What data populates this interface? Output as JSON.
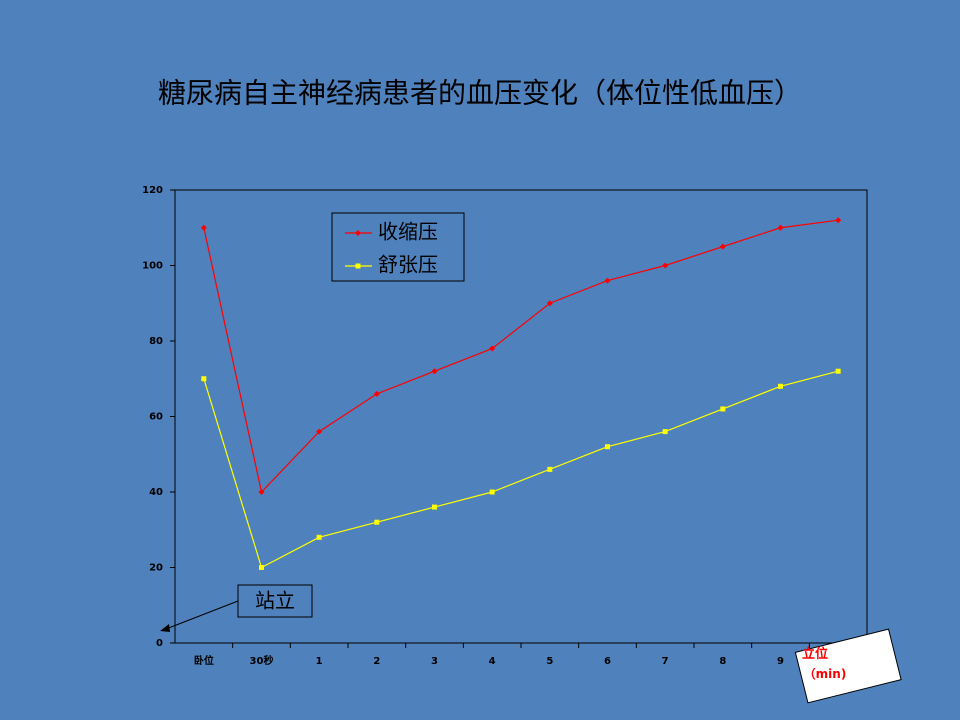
{
  "chart_data": {
    "type": "line",
    "title": "糖尿病自主神经病患者的血压变化（体位性低血压）",
    "categories": [
      "卧位",
      "30秒",
      "1",
      "2",
      "3",
      "4",
      "5",
      "6",
      "7",
      "8",
      "9",
      null
    ],
    "series": [
      {
        "name": "收缩压",
        "color": "#ff0000",
        "marker": "diamond",
        "values": [
          110,
          40,
          56,
          66,
          72,
          78,
          90,
          96,
          100,
          105,
          110,
          112
        ]
      },
      {
        "name": "舒张压",
        "color": "#ffff00",
        "marker": "square",
        "values": [
          70,
          20,
          28,
          32,
          36,
          40,
          46,
          52,
          56,
          62,
          68,
          72
        ]
      }
    ],
    "ylim": [
      0,
      120
    ],
    "yticks": [
      0,
      20,
      40,
      60,
      80,
      100,
      120
    ],
    "callout": "站立",
    "axis_note": [
      "立位",
      "（min)"
    ]
  }
}
